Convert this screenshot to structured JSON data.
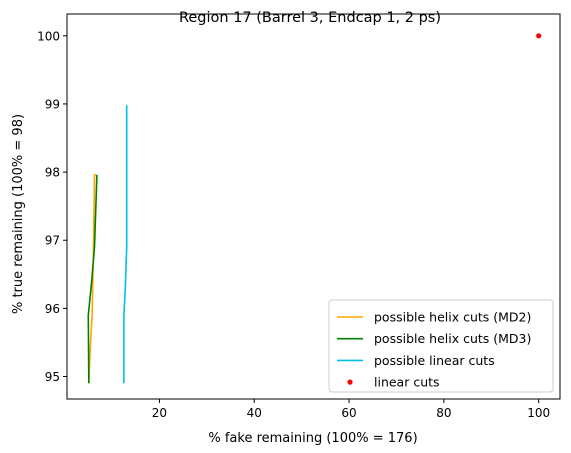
{
  "chart_data": {
    "type": "line",
    "title": "Region 17 (Barrel 3, Endcap 1, 2 ps)",
    "xlabel": "% fake remaining (100% = 176)",
    "ylabel": "% true remaining (100% = 98)",
    "xlim": [
      0.5,
      104.5
    ],
    "ylim": [
      94.67,
      100.32
    ],
    "xticks": [
      20,
      40,
      60,
      80,
      100
    ],
    "yticks": [
      95,
      96,
      97,
      98,
      99,
      100
    ],
    "grid": false,
    "legend_position": "lower-right",
    "series": [
      {
        "name": "possible helix cuts (MD2)",
        "kind": "line",
        "color": "#ffa500",
        "points": [
          [
            5.1,
            94.9
          ],
          [
            5.4,
            95.4
          ],
          [
            5.8,
            95.9
          ],
          [
            6.1,
            96.9
          ],
          [
            6.3,
            97.96
          ],
          [
            6.6,
            97.96
          ]
        ]
      },
      {
        "name": "possible helix cuts (MD3)",
        "kind": "line",
        "color": "#008000",
        "points": [
          [
            5.1,
            94.9
          ],
          [
            5.0,
            95.9
          ],
          [
            5.7,
            96.4
          ],
          [
            6.3,
            96.9
          ],
          [
            6.8,
            97.96
          ]
        ]
      },
      {
        "name": "possible linear cuts",
        "kind": "line",
        "color": "#00bfea",
        "points": [
          [
            12.5,
            94.9
          ],
          [
            12.5,
            95.9
          ],
          [
            12.8,
            96.3
          ],
          [
            13.1,
            96.9
          ],
          [
            13.1,
            98.98
          ]
        ]
      },
      {
        "name": "linear cuts",
        "kind": "scatter",
        "color": "#ff0000",
        "points": [
          [
            100,
            100
          ]
        ]
      }
    ]
  }
}
